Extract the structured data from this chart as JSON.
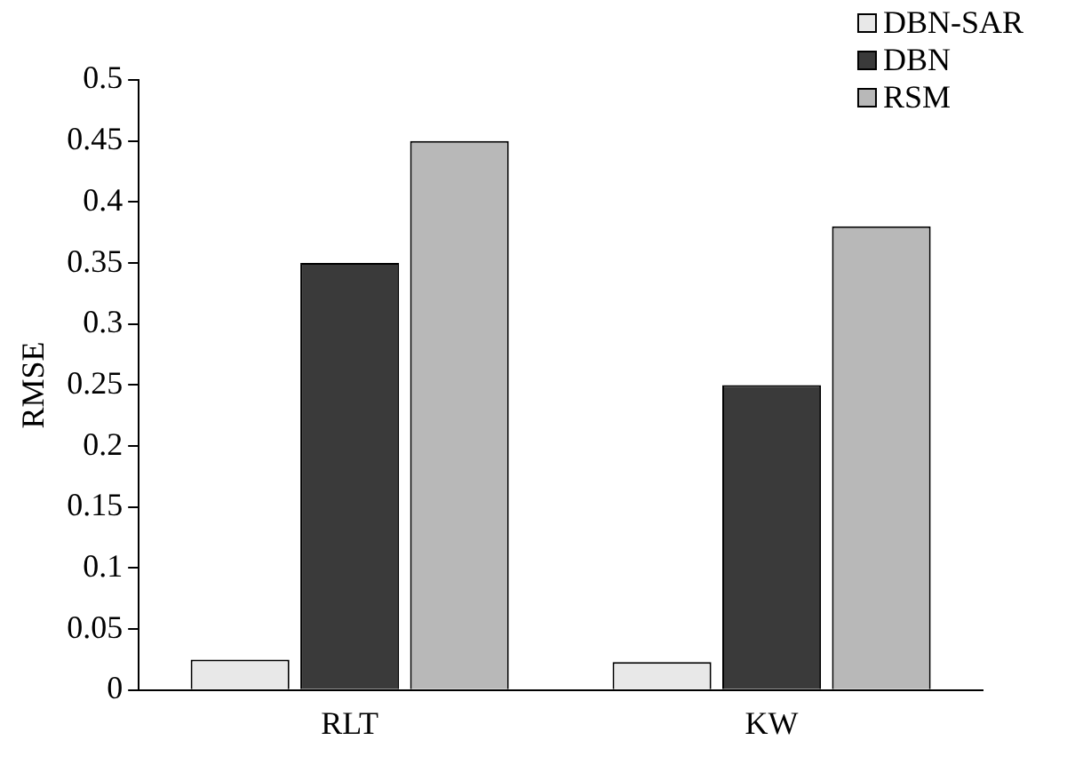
{
  "chart_data": {
    "type": "bar",
    "ylabel": "RMSE",
    "categories": [
      "RLT",
      "KW"
    ],
    "series": [
      {
        "name": "DBN-SAR",
        "color": "#e8e8e8",
        "values": [
          0.025,
          0.023
        ]
      },
      {
        "name": "DBN",
        "color": "#3a3a3a",
        "values": [
          0.35,
          0.25
        ]
      },
      {
        "name": "RSM",
        "color": "#b8b8b8",
        "values": [
          0.45,
          0.38
        ]
      }
    ],
    "ylim": [
      0,
      0.5
    ],
    "yticks": [
      0,
      0.05,
      0.1,
      0.15,
      0.2,
      0.25,
      0.3,
      0.35,
      0.4,
      0.45,
      0.5
    ],
    "grid": false,
    "legend": "top right"
  }
}
